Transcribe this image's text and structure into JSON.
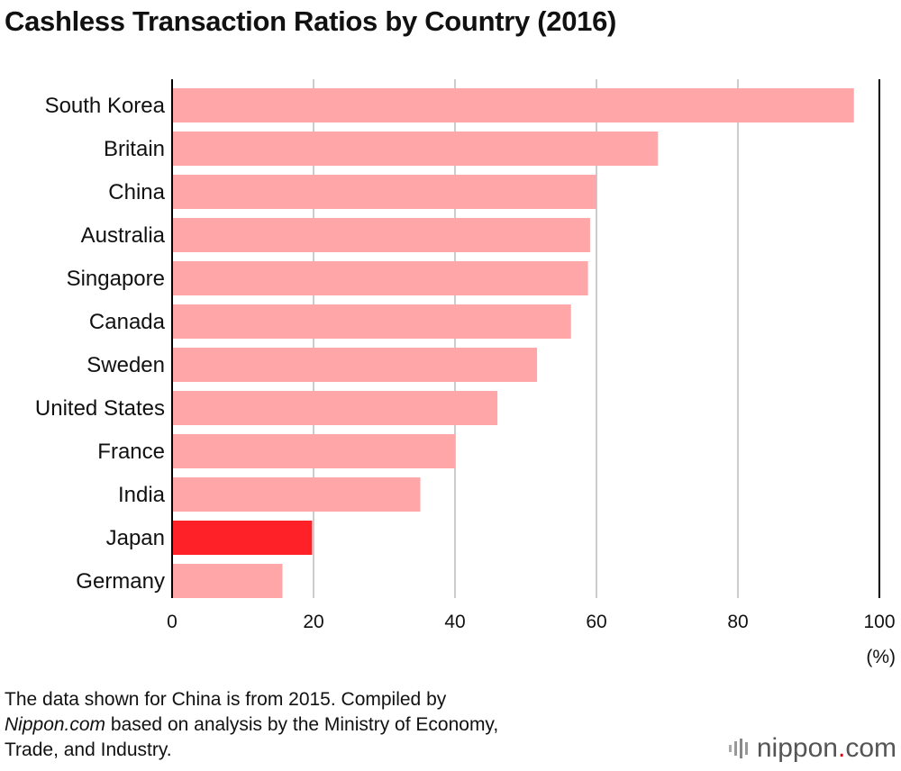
{
  "chart_data": {
    "type": "bar",
    "orientation": "horizontal",
    "title": "Cashless Transaction Ratios by Country (2016)",
    "categories": [
      "South Korea",
      "Britain",
      "China",
      "Australia",
      "Singapore",
      "Canada",
      "Sweden",
      "United States",
      "France",
      "India",
      "Japan",
      "Germany"
    ],
    "values": [
      96.4,
      68.7,
      60.0,
      59.1,
      58.8,
      56.4,
      51.6,
      46.0,
      40.0,
      35.1,
      19.8,
      15.6
    ],
    "highlight": "Japan",
    "xlim": [
      0,
      100
    ],
    "xticks": [
      "0",
      "20",
      "40",
      "60",
      "80",
      "100"
    ],
    "xunit": "(%)",
    "grid": true,
    "colors": {
      "bar": "#ffa6a9",
      "highlight": "#ff2128",
      "grid": "#cccccc",
      "axis": "#000000"
    }
  },
  "footnote": {
    "line1": "The data shown for China is from 2015. Compiled by",
    "line2_italic": "Nippon.com",
    "line2_rest": " based on analysis by the Ministry of Economy,",
    "line3": "Trade, and Industry."
  },
  "logo": {
    "name": "nippon",
    "dot": ".",
    "suffix": "com"
  }
}
